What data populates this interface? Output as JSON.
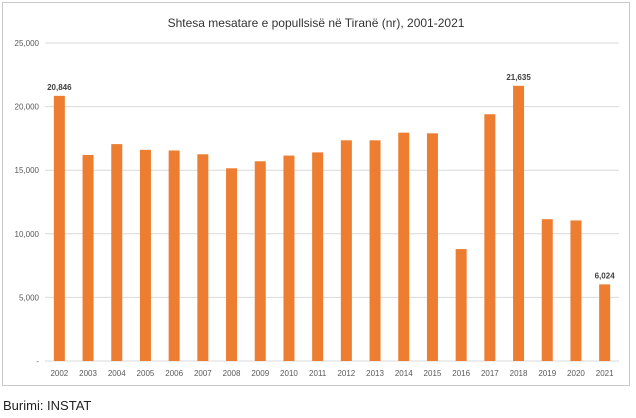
{
  "chart_data": {
    "type": "bar",
    "title": "Shtesa mesatare e popullsisë në Tiranë (nr), 2001-2021",
    "xlabel": "",
    "ylabel": "",
    "categories": [
      "2002",
      "2003",
      "2004",
      "2005",
      "2006",
      "2007",
      "2008",
      "2009",
      "2010",
      "2011",
      "2012",
      "2013",
      "2014",
      "2015",
      "2016",
      "2017",
      "2018",
      "2019",
      "2020",
      "2021"
    ],
    "values": [
      20846,
      16200,
      17050,
      16600,
      16550,
      16250,
      15150,
      15700,
      16150,
      16400,
      17350,
      17350,
      17950,
      17900,
      8800,
      19400,
      21635,
      11150,
      11050,
      6024
    ],
    "data_labels": [
      {
        "index": 0,
        "text": "20,846"
      },
      {
        "index": 16,
        "text": "21,635"
      },
      {
        "index": 19,
        "text": "6,024"
      }
    ],
    "y_ticks": [
      {
        "value": 0,
        "label": "-"
      },
      {
        "value": 5000,
        "label": "5,000"
      },
      {
        "value": 10000,
        "label": "10,000"
      },
      {
        "value": 15000,
        "label": "15,000"
      },
      {
        "value": 20000,
        "label": "20,000"
      },
      {
        "value": 25000,
        "label": "25,000"
      }
    ],
    "ylim": [
      0,
      25000
    ],
    "grid": true,
    "legend": "none",
    "bar_color": "#ED7D31",
    "grid_color": "#d9d9d9"
  },
  "source_text": "Burimi: INSTAT"
}
